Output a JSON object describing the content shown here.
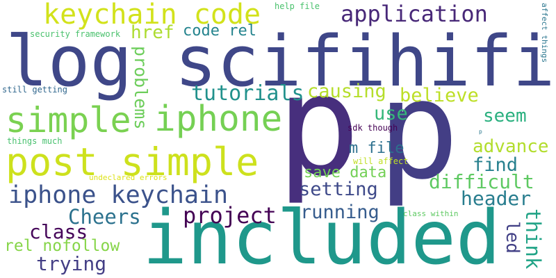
{
  "words": [
    {
      "text": "p",
      "color": "#472f7d"
    },
    {
      "text": "p",
      "color": "#433e85"
    },
    {
      "text": "log scifihifi",
      "color": "#3f4788"
    },
    {
      "text": "included",
      "color": "#1f988b"
    },
    {
      "text": "post simple",
      "color": "#cde11d"
    },
    {
      "text": "simple",
      "color": "#7ad151"
    },
    {
      "text": "iphone",
      "color": "#75d054"
    },
    {
      "text": "keychain code",
      "color": "#d2e21b"
    },
    {
      "text": "iphone keychain",
      "color": "#3b528b"
    },
    {
      "text": "application",
      "color": "#482878"
    },
    {
      "text": "href",
      "color": "#addc30"
    },
    {
      "text": "code rel",
      "color": "#25848e"
    },
    {
      "text": "problems",
      "color": "#6ccd5a"
    },
    {
      "text": "tutorials",
      "color": "#21918c"
    },
    {
      "text": "causing",
      "color": "#b5de2b"
    },
    {
      "text": "believe",
      "color": "#bddf26"
    },
    {
      "text": "use",
      "color": "#35b779"
    },
    {
      "text": "seem",
      "color": "#2ab07f"
    },
    {
      "text": "m file",
      "color": "#2d708e"
    },
    {
      "text": "advance",
      "color": "#b2dd2d"
    },
    {
      "text": "find",
      "color": "#27808e"
    },
    {
      "text": "difficult",
      "color": "#5ec962"
    },
    {
      "text": "save data",
      "color": "#73d056"
    },
    {
      "text": "setting",
      "color": "#3e4989"
    },
    {
      "text": "running",
      "color": "#365c8d"
    },
    {
      "text": "Cheers",
      "color": "#2c728e"
    },
    {
      "text": "project",
      "color": "#440154"
    },
    {
      "text": "header",
      "color": "#287d8e"
    },
    {
      "text": "think",
      "color": "#20a386"
    },
    {
      "text": "led",
      "color": "#424086"
    },
    {
      "text": "class",
      "color": "#46075a"
    },
    {
      "text": "rel nofollow",
      "color": "#86d549"
    },
    {
      "text": "trying",
      "color": "#433e85"
    },
    {
      "text": "security framework",
      "color": "#4ac16d"
    },
    {
      "text": "still getting",
      "color": "#31688e"
    },
    {
      "text": "things much",
      "color": "#48c16e"
    },
    {
      "text": "sdk though",
      "color": "#440154"
    },
    {
      "text": "will affect",
      "color": "#c0df25"
    },
    {
      "text": "undeclared errors",
      "color": "#dde318"
    },
    {
      "text": "class within",
      "color": "#5ec962"
    },
    {
      "text": "help file",
      "color": "#4ac16d"
    },
    {
      "text": "affect things",
      "color": "#2a768e"
    },
    {
      "text": "p",
      "color": "#2a788e"
    }
  ]
}
